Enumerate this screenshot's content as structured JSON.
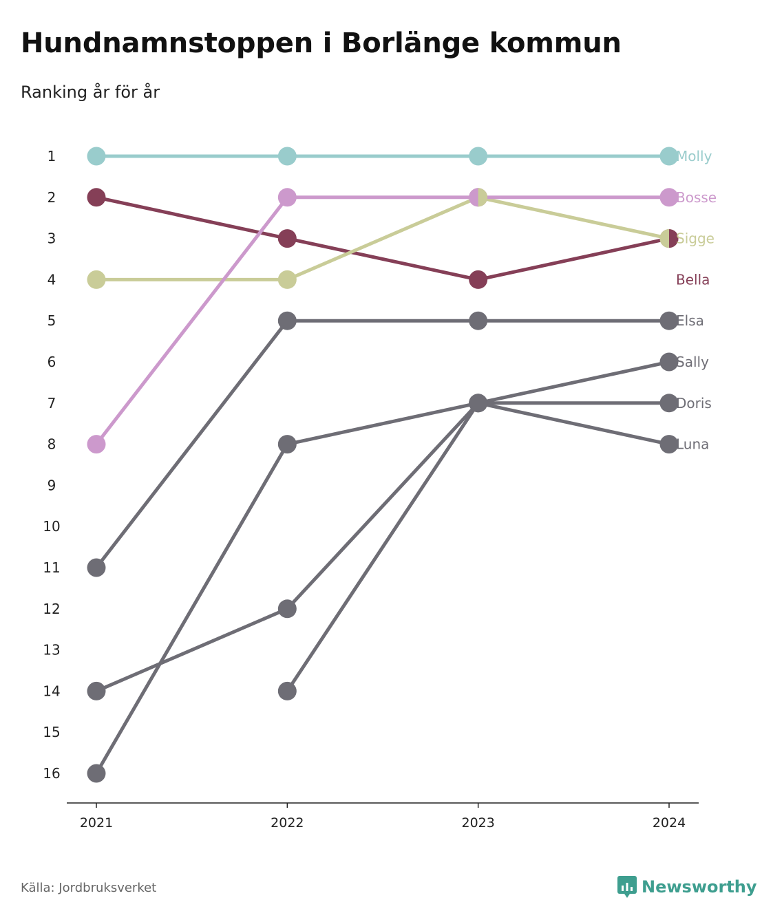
{
  "title": "Hundnamnstoppen i Borlänge kommun",
  "subtitle": "Ranking år för år",
  "source": "Källa: Jordbruksverket",
  "brand": {
    "name": "Newsworthy",
    "icon": "newsworthy-logo-icon",
    "color": "#3e9e8f"
  },
  "chart_data": {
    "type": "line",
    "title": "Hundnamnstoppen i Borlänge kommun",
    "subtitle": "Ranking år för år",
    "x": [
      "2021",
      "2022",
      "2023",
      "2024"
    ],
    "y_ticks": [
      "1",
      "2",
      "3",
      "4",
      "5",
      "6",
      "7",
      "8",
      "9",
      "10",
      "11",
      "12",
      "13",
      "14",
      "15",
      "16"
    ],
    "ylim": [
      1,
      16
    ],
    "y_reversed": true,
    "grid": false,
    "legend": "direct labels at right end",
    "series": [
      {
        "name": "Elsa",
        "color": "#6e6d75",
        "values": [
          11,
          5,
          5,
          5
        ]
      },
      {
        "name": "Sally",
        "color": "#6e6d75",
        "values": [
          14,
          12,
          7,
          6
        ]
      },
      {
        "name": "Doris",
        "color": "#6e6d75",
        "values": [
          16,
          8,
          7,
          7
        ]
      },
      {
        "name": "Luna",
        "color": "#6e6d75",
        "values": [
          null,
          14,
          7,
          8
        ]
      },
      {
        "name": "Bella",
        "color": "#853f57",
        "values": [
          2,
          3,
          4,
          3
        ]
      },
      {
        "name": "Sigge",
        "color": "#c9cc98",
        "values": [
          4,
          4,
          2,
          3
        ]
      },
      {
        "name": "Bosse",
        "color": "#cc99cc",
        "values": [
          8,
          2,
          2,
          2
        ]
      },
      {
        "name": "Molly",
        "color": "#99cccc",
        "values": [
          1,
          1,
          1,
          1
        ]
      }
    ],
    "end_labels": [
      {
        "name": "Molly",
        "color": "#99cccc",
        "rank": 1
      },
      {
        "name": "Bosse",
        "color": "#cc99cc",
        "rank": 2
      },
      {
        "name": "Sigge",
        "color": "#c9cc98",
        "rank": 3
      },
      {
        "name": "Bella",
        "color": "#853f57",
        "rank": 4
      },
      {
        "name": "Elsa",
        "color": "#6e6d75",
        "rank": 5
      },
      {
        "name": "Sally",
        "color": "#6e6d75",
        "rank": 6
      },
      {
        "name": "Doris",
        "color": "#6e6d75",
        "rank": 7
      },
      {
        "name": "Luna",
        "color": "#6e6d75",
        "rank": 8
      }
    ]
  }
}
